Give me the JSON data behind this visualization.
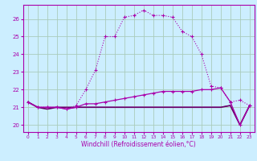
{
  "xlabel": "Windchill (Refroidissement éolien,°C)",
  "bg_color": "#cceeff",
  "grid_color": "#aaccbb",
  "line_color": "#aa00aa",
  "line_color2": "#660066",
  "xlim": [
    -0.5,
    23.5
  ],
  "ylim": [
    19.6,
    26.8
  ],
  "yticks": [
    20,
    21,
    22,
    23,
    24,
    25,
    26
  ],
  "xticks": [
    0,
    1,
    2,
    3,
    4,
    5,
    6,
    7,
    8,
    9,
    10,
    11,
    12,
    13,
    14,
    15,
    16,
    17,
    18,
    19,
    20,
    21,
    22,
    23
  ],
  "series1_x": [
    0,
    1,
    2,
    3,
    4,
    5,
    6,
    7,
    8,
    9,
    10,
    11,
    12,
    13,
    14,
    15,
    16,
    17,
    18,
    19,
    20,
    21,
    22,
    23
  ],
  "series1_y": [
    21.3,
    21.0,
    21.0,
    21.0,
    20.9,
    21.1,
    22.0,
    23.1,
    25.0,
    25.0,
    26.1,
    26.2,
    26.5,
    26.2,
    26.2,
    26.1,
    25.3,
    25.0,
    24.0,
    22.2,
    22.1,
    21.3,
    21.4,
    21.1
  ],
  "series2_x": [
    0,
    1,
    2,
    3,
    4,
    5,
    6,
    7,
    8,
    9,
    10,
    11,
    12,
    13,
    14,
    15,
    16,
    17,
    18,
    19,
    20,
    21,
    22,
    23
  ],
  "series2_y": [
    21.3,
    21.0,
    21.0,
    21.0,
    20.9,
    21.0,
    21.2,
    21.2,
    21.3,
    21.4,
    21.5,
    21.6,
    21.7,
    21.8,
    21.9,
    21.9,
    21.9,
    21.9,
    22.0,
    22.0,
    22.1,
    21.3,
    20.0,
    21.1
  ],
  "series3_x": [
    0,
    1,
    2,
    3,
    4,
    5,
    6,
    7,
    8,
    9,
    10,
    11,
    12,
    13,
    14,
    15,
    16,
    17,
    18,
    19,
    20,
    21,
    22,
    23
  ],
  "series3_y": [
    21.3,
    21.0,
    20.9,
    21.0,
    21.0,
    21.0,
    21.0,
    21.0,
    21.0,
    21.0,
    21.0,
    21.0,
    21.0,
    21.0,
    21.0,
    21.0,
    21.0,
    21.0,
    21.0,
    21.0,
    21.0,
    21.1,
    20.0,
    21.1
  ],
  "series4_x": [
    0,
    1,
    2,
    3,
    4,
    5,
    6,
    7,
    8,
    9,
    10,
    11,
    12,
    13,
    14,
    15,
    16,
    17,
    18,
    19,
    20,
    21,
    22,
    23
  ],
  "series4_y": [
    21.3,
    21.0,
    21.0,
    21.0,
    20.9,
    21.0,
    21.0,
    21.0,
    21.0,
    21.0,
    21.0,
    21.0,
    21.0,
    21.0,
    21.0,
    21.0,
    21.0,
    21.0,
    21.0,
    21.0,
    21.0,
    21.1,
    20.0,
    21.1
  ]
}
